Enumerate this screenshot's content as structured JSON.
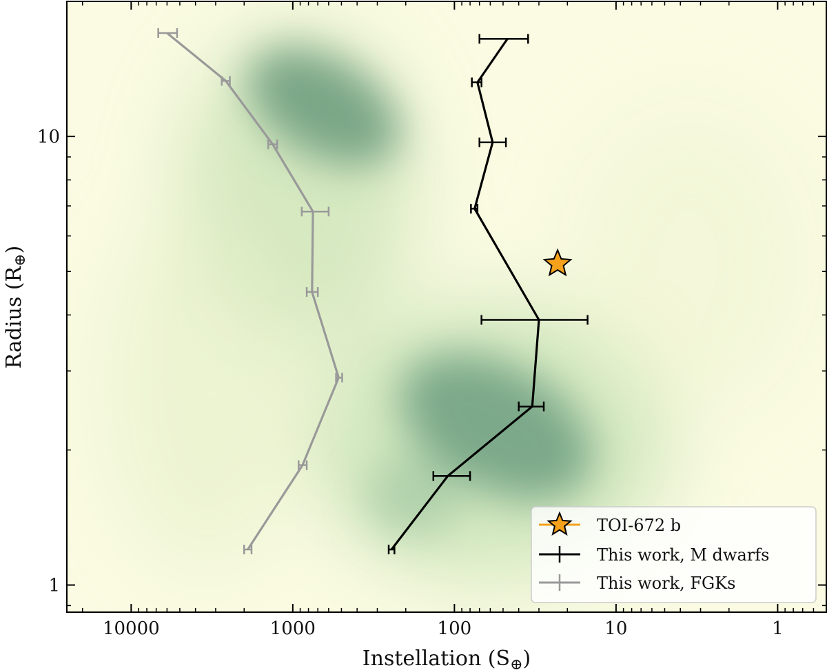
{
  "chart_data": {
    "type": "line",
    "title": "",
    "xlabel": "Instellation (S",
    "xlabel_sub": "⊕",
    "xlabel_close": ")",
    "ylabel": "Radius (R",
    "ylabel_sub": "⊕",
    "ylabel_close": ")",
    "x_scale": "log",
    "x_inverted": true,
    "y_scale": "log",
    "xlim": [
      25000,
      0.5
    ],
    "ylim": [
      0.87,
      20
    ],
    "x_ticks": [
      {
        "value": 10000,
        "label": "10000"
      },
      {
        "value": 1000,
        "label": "1000"
      },
      {
        "value": 100,
        "label": "100"
      },
      {
        "value": 10,
        "label": "10"
      },
      {
        "value": 1,
        "label": "1"
      }
    ],
    "y_ticks": [
      {
        "value": 1,
        "label": "1"
      },
      {
        "value": 10,
        "label": "10"
      }
    ],
    "background": "2D density map (green on pale yellow)",
    "grid": false,
    "legend_position": "bottom-right",
    "series": [
      {
        "name": "This work, M dwarfs",
        "color": "#000000",
        "points": [
          {
            "x": 47,
            "y": 16.5,
            "xerr_low": 35,
            "xerr_high": 70
          },
          {
            "x": 72,
            "y": 13.2,
            "xerr_low": 68,
            "xerr_high": 78
          },
          {
            "x": 58,
            "y": 9.7,
            "xerr_low": 48,
            "xerr_high": 70
          },
          {
            "x": 75,
            "y": 6.9,
            "xerr_low": 72,
            "xerr_high": 79
          },
          {
            "x": 30,
            "y": 3.9,
            "xerr_low": 15,
            "xerr_high": 68
          },
          {
            "x": 33,
            "y": 2.5,
            "xerr_low": 28,
            "xerr_high": 40
          },
          {
            "x": 110,
            "y": 1.75,
            "xerr_low": 80,
            "xerr_high": 135
          },
          {
            "x": 245,
            "y": 1.2,
            "xerr_low": 235,
            "xerr_high": 255
          }
        ]
      },
      {
        "name": "This work, FGKs",
        "color": "#999999",
        "points": [
          {
            "x": 6000,
            "y": 17.0,
            "xerr_low": 5200,
            "xerr_high": 6800
          },
          {
            "x": 2600,
            "y": 13.3,
            "xerr_low": 2450,
            "xerr_high": 2750
          },
          {
            "x": 1330,
            "y": 9.6,
            "xerr_low": 1250,
            "xerr_high": 1420
          },
          {
            "x": 750,
            "y": 6.8,
            "xerr_low": 600,
            "xerr_high": 880
          },
          {
            "x": 760,
            "y": 4.5,
            "xerr_low": 700,
            "xerr_high": 820
          },
          {
            "x": 520,
            "y": 2.9,
            "xerr_low": 495,
            "xerr_high": 540
          },
          {
            "x": 870,
            "y": 1.85,
            "xerr_low": 820,
            "xerr_high": 920
          },
          {
            "x": 1900,
            "y": 1.2,
            "xerr_low": 1800,
            "xerr_high": 2000
          }
        ]
      }
    ],
    "highlight": {
      "name": "TOI-672 b",
      "x": 23,
      "y": 5.2,
      "marker": "star",
      "color": "#f5a11c"
    },
    "legend": [
      {
        "label": "TOI-672 b",
        "kind": "star"
      },
      {
        "label": "This work, M dwarfs",
        "kind": "line-black"
      },
      {
        "label": "This work, FGKs",
        "kind": "line-gray"
      }
    ]
  }
}
